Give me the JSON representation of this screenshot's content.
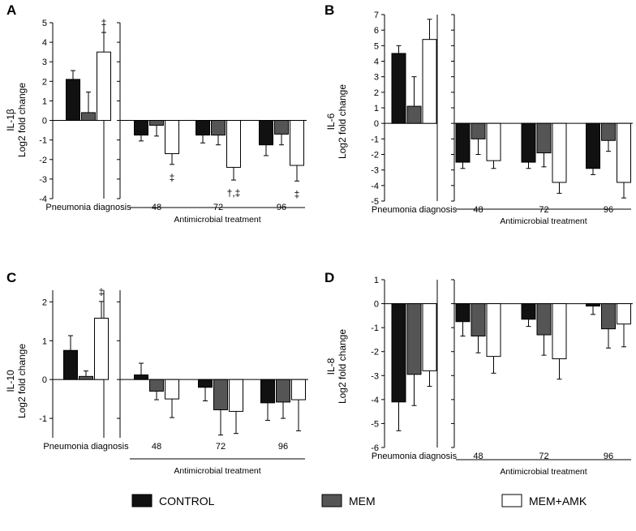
{
  "colors": {
    "CONTROL": "#111111",
    "MEM": "#555555",
    "MEM+AMK": "#ffffff",
    "axis": "#000000"
  },
  "legend": {
    "items": [
      "CONTROL",
      "MEM",
      "MEM+AMK"
    ]
  },
  "chart_data": [
    {
      "type": "bar",
      "panel": "A",
      "title": "",
      "ylabel": [
        "IL-1β",
        "Log2 fold change"
      ],
      "ylim": [
        -4,
        5
      ],
      "yticks": [
        -4,
        -3,
        -2,
        -1,
        0,
        1,
        2,
        3,
        4,
        5
      ],
      "categories": [
        "Pneumonia diagnosis",
        "48",
        "72",
        "96"
      ],
      "x_group_label": "Antimicrobial treatment",
      "series": [
        {
          "name": "CONTROL",
          "values": [
            2.1,
            -0.75,
            -0.75,
            -1.25
          ],
          "errors": [
            0.45,
            0.3,
            0.4,
            0.55
          ]
        },
        {
          "name": "MEM",
          "values": [
            0.4,
            -0.25,
            -0.75,
            -0.7
          ],
          "errors": [
            1.05,
            0.55,
            0.5,
            0.55
          ]
        },
        {
          "name": "MEM+AMK",
          "values": [
            3.5,
            -1.7,
            -2.4,
            -2.3
          ],
          "errors": [
            1.0,
            0.55,
            0.65,
            0.8
          ]
        }
      ],
      "annotations": [
        {
          "category": "Pneumonia diagnosis",
          "series": "MEM+AMK",
          "text": "‡",
          "position": "above"
        },
        {
          "category": "48",
          "series": "MEM+AMK",
          "text": "‡",
          "position": "below"
        },
        {
          "category": "72",
          "series": "MEM+AMK",
          "text": "†,‡",
          "position": "below"
        },
        {
          "category": "96",
          "series": "MEM+AMK",
          "text": "‡",
          "position": "below"
        }
      ]
    },
    {
      "type": "bar",
      "panel": "B",
      "title": "",
      "ylabel": [
        "IL-6",
        "Log2 fold change"
      ],
      "ylim": [
        -5,
        7
      ],
      "yticks": [
        -5,
        -4,
        -3,
        -2,
        -1,
        0,
        1,
        2,
        3,
        4,
        5,
        6,
        7
      ],
      "categories": [
        "Pneumonia diagnosis",
        "48",
        "72",
        "96"
      ],
      "x_group_label": "Antimicrobial treatment",
      "series": [
        {
          "name": "CONTROL",
          "values": [
            4.5,
            -2.5,
            -2.5,
            -2.9
          ],
          "errors": [
            0.5,
            0.4,
            0.4,
            0.4
          ]
        },
        {
          "name": "MEM",
          "values": [
            1.1,
            -1.0,
            -1.9,
            -1.1
          ],
          "errors": [
            1.9,
            1.0,
            0.9,
            0.7
          ]
        },
        {
          "name": "MEM+AMK",
          "values": [
            5.4,
            -2.4,
            -3.8,
            -3.8
          ],
          "errors": [
            1.3,
            0.5,
            0.7,
            1.0
          ]
        }
      ],
      "annotations": []
    },
    {
      "type": "bar",
      "panel": "C",
      "title": "",
      "ylabel": [
        "IL-10",
        "Log2 fold change"
      ],
      "ylim": [
        -1.5,
        2.3
      ],
      "yticks": [
        -1,
        0,
        1,
        2
      ],
      "categories": [
        "Pneumonia diagnosis",
        "48",
        "72",
        "96"
      ],
      "x_group_label": "Antimicrobial treatment",
      "series": [
        {
          "name": "CONTROL",
          "values": [
            0.75,
            0.12,
            -0.2,
            -0.6
          ],
          "errors": [
            0.38,
            0.3,
            0.35,
            0.45
          ]
        },
        {
          "name": "MEM",
          "values": [
            0.08,
            -0.3,
            -0.78,
            -0.58
          ],
          "errors": [
            0.14,
            0.22,
            0.65,
            0.42
          ]
        },
        {
          "name": "MEM+AMK",
          "values": [
            1.58,
            -0.5,
            -0.82,
            -0.52
          ],
          "errors": [
            0.43,
            0.48,
            0.57,
            0.8
          ]
        }
      ],
      "annotations": [
        {
          "category": "Pneumonia diagnosis",
          "series": "MEM+AMK",
          "text": "‡",
          "position": "above"
        }
      ]
    },
    {
      "type": "bar",
      "panel": "D",
      "title": "",
      "ylabel": [
        "IL-8",
        "Log2 fold change"
      ],
      "ylim": [
        -6,
        1
      ],
      "yticks": [
        -6,
        -5,
        -4,
        -3,
        -2,
        -1,
        0,
        1
      ],
      "categories": [
        "Pneumonia diagnosis",
        "48",
        "72",
        "96"
      ],
      "x_group_label": "Antimicrobial treatment",
      "series": [
        {
          "name": "CONTROL",
          "values": [
            -4.1,
            -0.75,
            -0.65,
            -0.1
          ],
          "errors": [
            1.2,
            0.6,
            0.3,
            0.35
          ]
        },
        {
          "name": "MEM",
          "values": [
            -2.95,
            -1.35,
            -1.3,
            -1.05
          ],
          "errors": [
            1.3,
            0.7,
            0.85,
            0.8
          ]
        },
        {
          "name": "MEM+AMK",
          "values": [
            -2.8,
            -2.2,
            -2.3,
            -0.85
          ],
          "errors": [
            0.65,
            0.7,
            0.85,
            0.95
          ]
        }
      ],
      "annotations": []
    }
  ]
}
